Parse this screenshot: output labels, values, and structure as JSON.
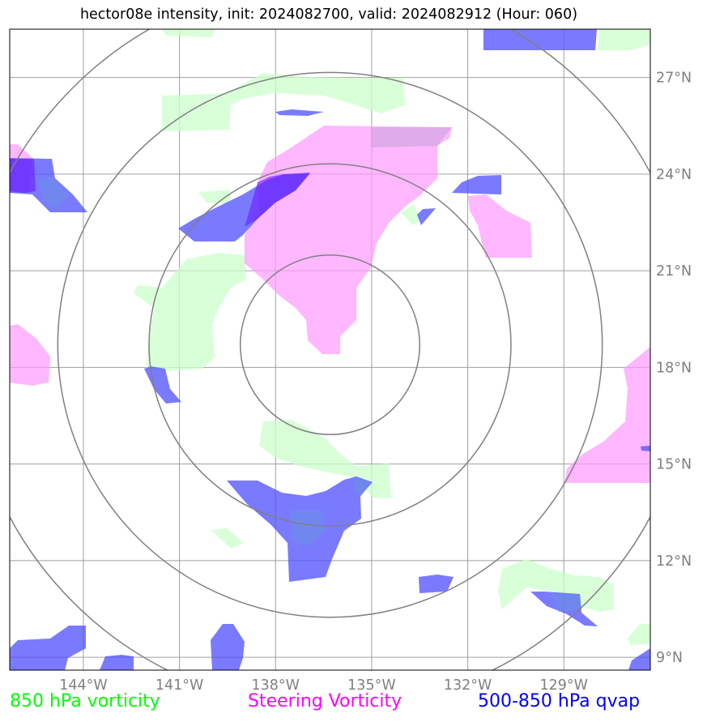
{
  "chart_data": {
    "type": "map",
    "title": "hector08e intensity, init: 2024082700, valid: 2024082912 (Hour: 060)",
    "x_ticks": [
      "144°W",
      "141°W",
      "138°W",
      "135°W",
      "132°W",
      "129°W"
    ],
    "y_ticks": [
      "27°N",
      "24°N",
      "21°N",
      "18°N",
      "15°N",
      "12°N",
      "9°N"
    ],
    "x_tick_values": [
      -144,
      -141,
      -138,
      -135,
      -132,
      -129
    ],
    "y_tick_values": [
      27,
      24,
      21,
      18,
      15,
      12,
      9
    ],
    "xlim": [
      -146.3,
      -126.3
    ],
    "ylim": [
      8.6,
      28.5
    ],
    "center": [
      -136.3,
      18.7
    ],
    "range_ring_radii_deg": [
      2.8,
      5.65,
      8.5,
      11.35
    ],
    "grid": true,
    "layers": [
      {
        "name": "850 hPa vorticity",
        "color": "#00ff00",
        "fill": "#ccffcc"
      },
      {
        "name": "Steering Vorticity",
        "color": "#ff00ff",
        "fill": "#ff99ff"
      },
      {
        "name": "500-850 hPa qvap",
        "color": "#0000ff",
        "fill": "#4d4dff"
      }
    ]
  },
  "legend": {
    "item1": "850 hPa vorticity",
    "item2": "Steering Vorticity",
    "item3": "500-850 hPa qvap"
  }
}
